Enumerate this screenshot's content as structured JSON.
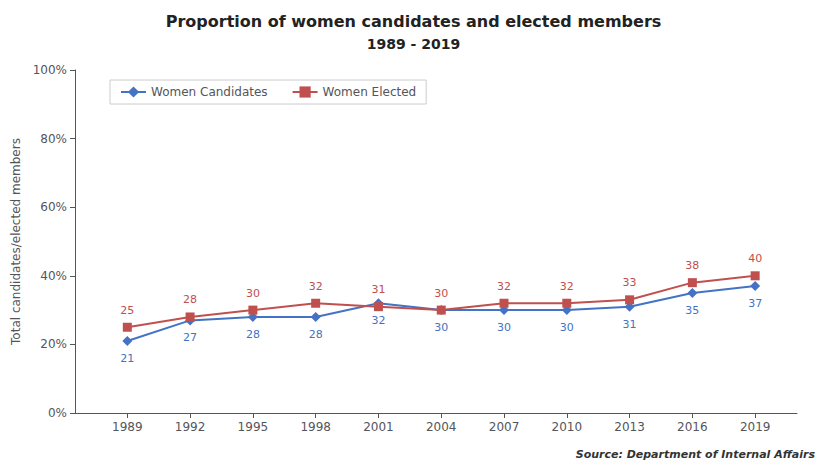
{
  "chart_data": {
    "type": "line",
    "title": "Proportion of women candidates and elected members",
    "subtitle": "1989 - 2019",
    "y_label": "Total candidates/elected members",
    "annotations": [
      "Source: Department of Internal Affairs"
    ],
    "x": [
      1989,
      1992,
      1995,
      1998,
      2001,
      2004,
      2007,
      2010,
      2013,
      2016,
      2019
    ],
    "xlim": [
      1986.5,
      2021
    ],
    "xticks": [
      1989,
      1992,
      1995,
      1998,
      2001,
      2004,
      2007,
      2010,
      2013,
      2016,
      2019
    ],
    "ylim": [
      0,
      100
    ],
    "yticks": [
      {
        "value": 0,
        "label": "0%"
      },
      {
        "value": 20,
        "label": "20%"
      },
      {
        "value": 40,
        "label": "40%"
      },
      {
        "value": 60,
        "label": "60%"
      },
      {
        "value": 80,
        "label": "80%"
      },
      {
        "value": 100,
        "label": "100%"
      }
    ],
    "grid": false,
    "legend": "upper left",
    "data_labels": true,
    "series": [
      {
        "name": "Women Candidates",
        "color": "#4472C4",
        "marker": "diamond",
        "values": [
          21,
          27,
          28,
          28,
          32,
          30,
          30,
          30,
          31,
          35,
          37
        ]
      },
      {
        "name": "Women Elected",
        "color": "#C0504D",
        "marker": "square",
        "values": [
          25,
          28,
          30,
          32,
          31,
          30,
          32,
          32,
          33,
          38,
          40
        ]
      }
    ]
  }
}
